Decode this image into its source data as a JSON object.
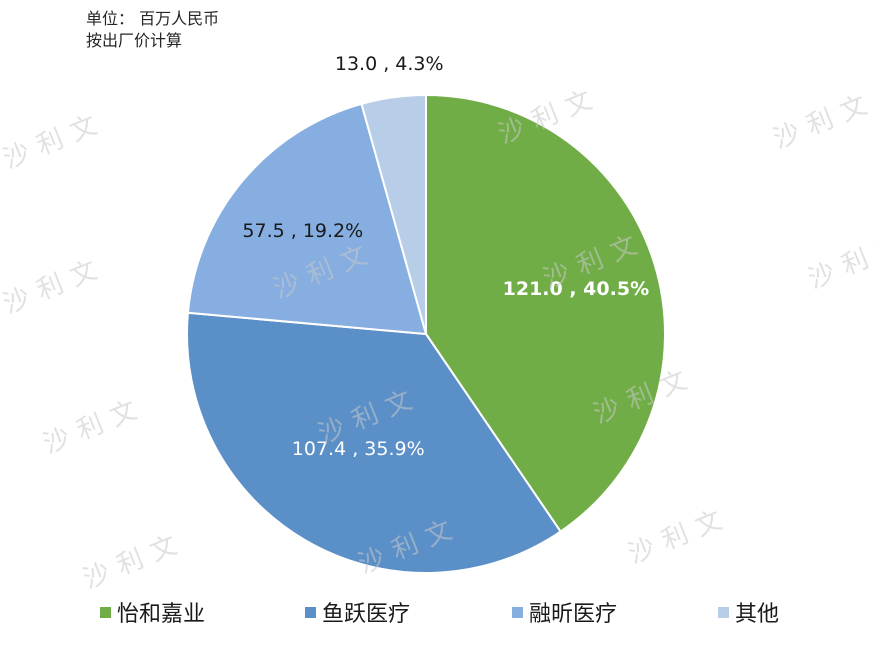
{
  "unit_note": {
    "line1": "单位： 百万人民币",
    "line2": "按出厂价计算"
  },
  "watermark_text": "沙利文",
  "chart_data": {
    "type": "pie",
    "title": "",
    "slices": [
      {
        "name": "怡和嘉业",
        "value": 121.0,
        "percent": 40.5,
        "label": "121.0 , 40.5%",
        "color": "#70ad47",
        "label_color": "#ffffff"
      },
      {
        "name": "鱼跃医疗",
        "value": 107.4,
        "percent": 35.9,
        "label": "107.4 , 35.9%",
        "color": "#5b8fc7",
        "label_color": "#ffffff"
      },
      {
        "name": "融昕医疗",
        "value": 57.5,
        "percent": 19.2,
        "label": "57.5 , 19.2%",
        "color": "#86aee0",
        "label_color": "#1a1a1a"
      },
      {
        "name": "其他",
        "value": 13.0,
        "percent": 4.3,
        "label": "13.0 , 4.3%",
        "color": "#b8cde8",
        "label_color": "#1a1a1a"
      }
    ],
    "legend_position": "bottom",
    "start_angle_deg": 0,
    "direction": "clockwise"
  }
}
